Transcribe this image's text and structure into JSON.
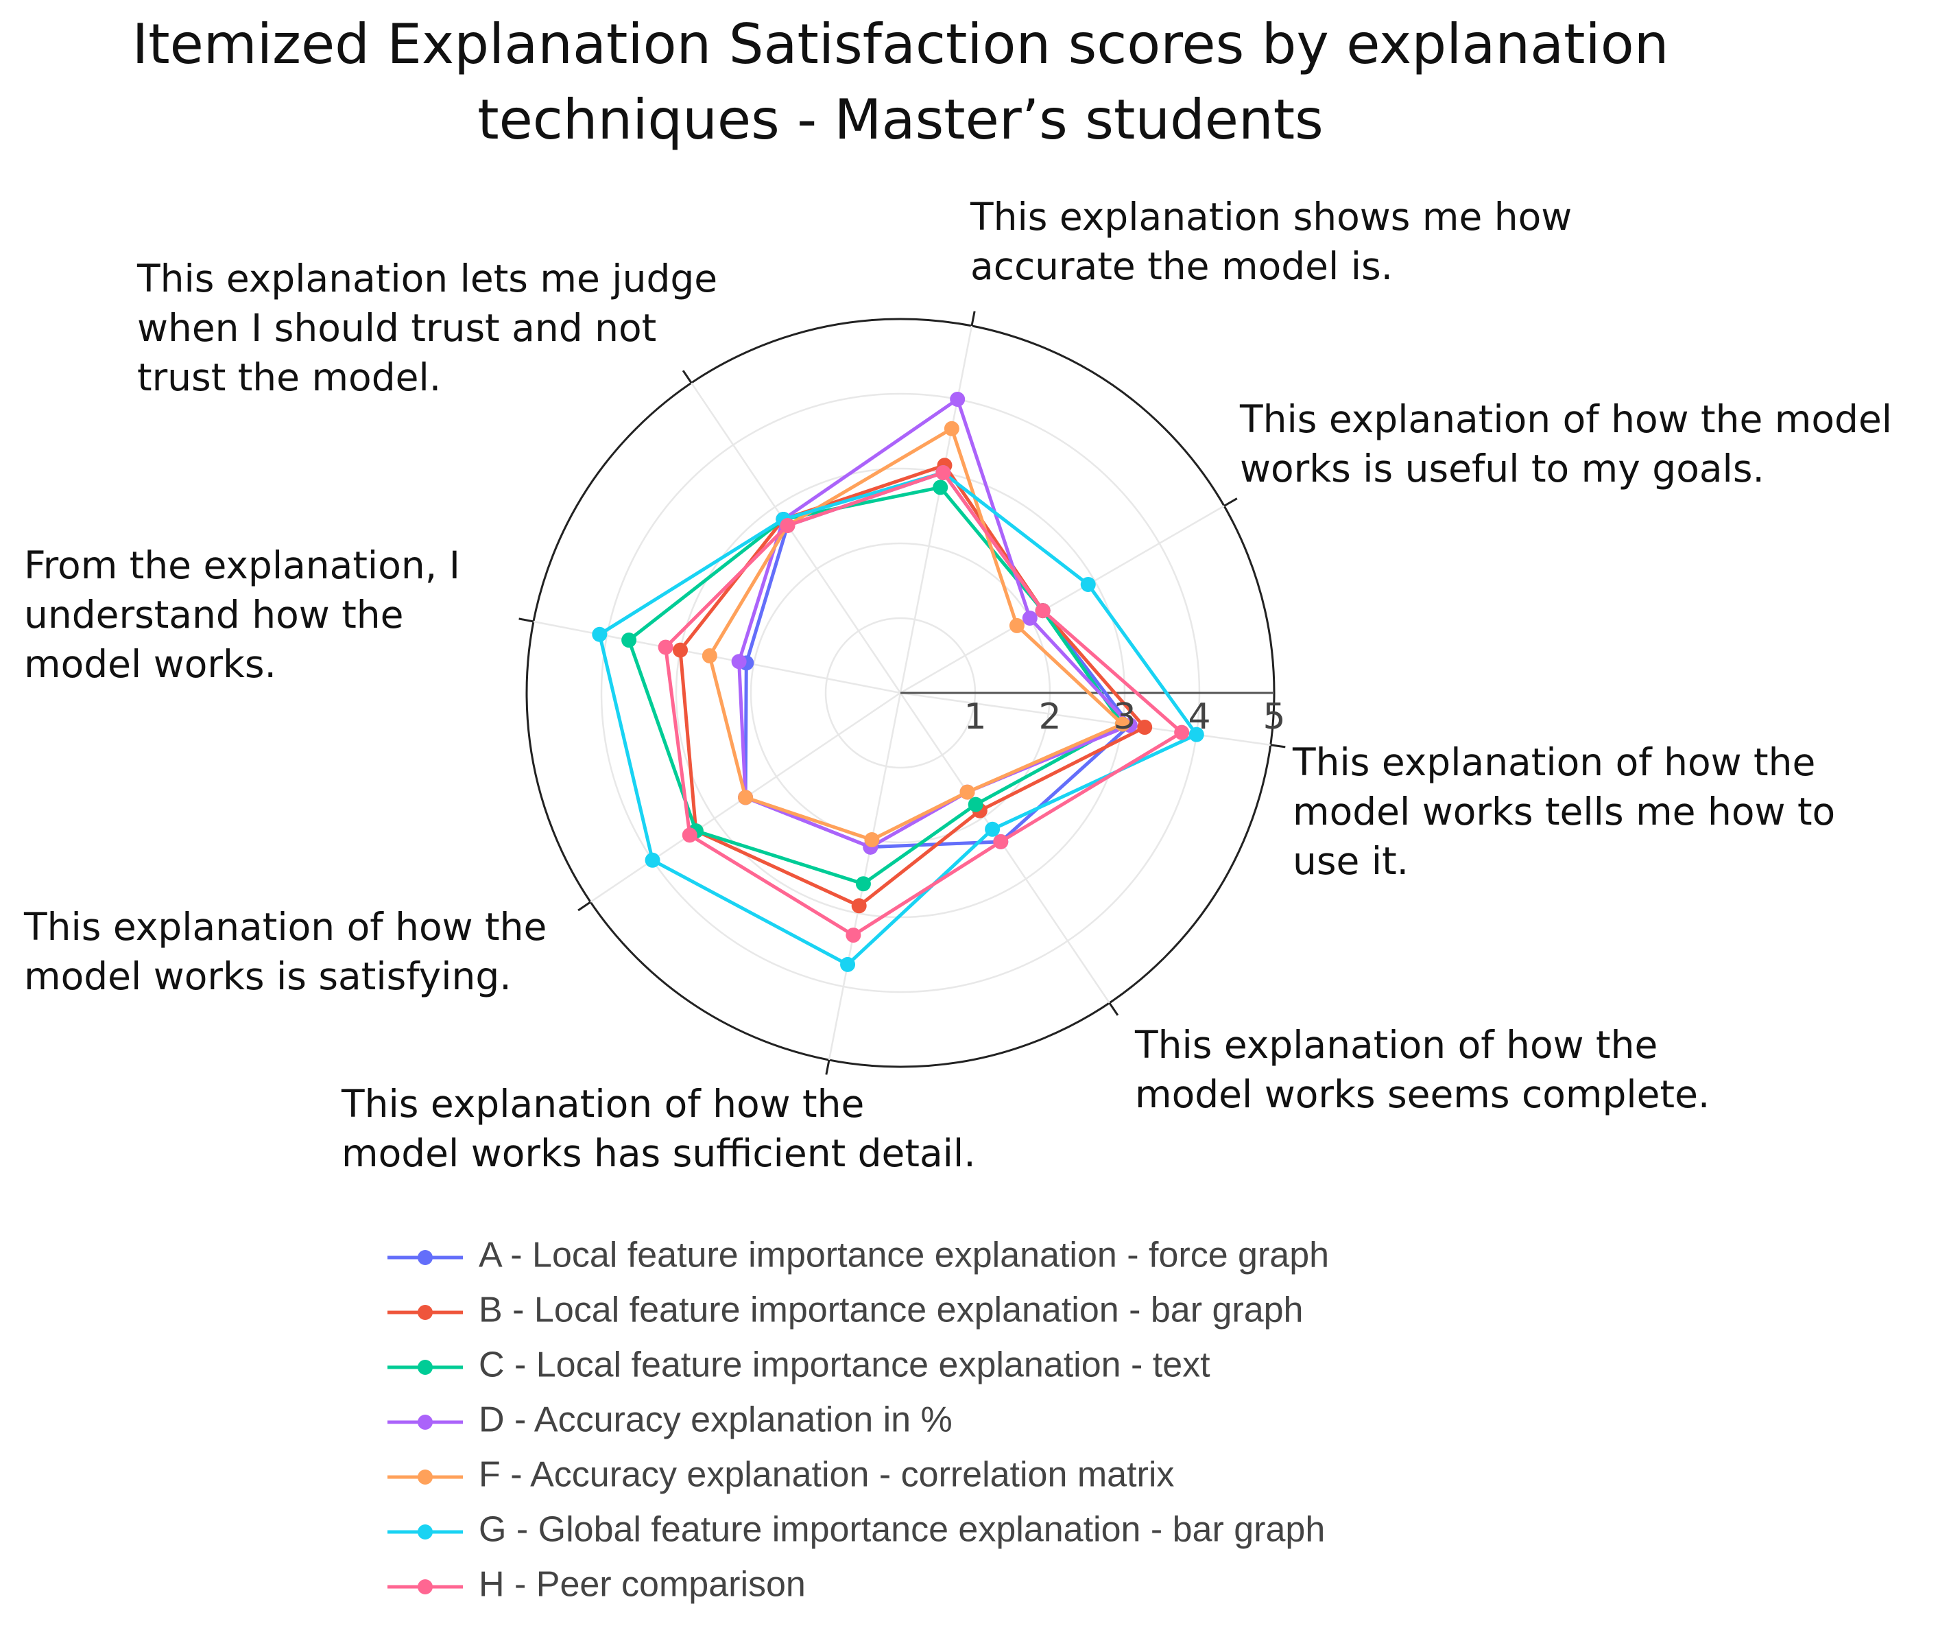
{
  "chart_data": {
    "type": "radar",
    "title": [
      "Itemized Explanation Satisfaction scores by explanation",
      "techniques - Master’s students"
    ],
    "radial_range": [
      0,
      5
    ],
    "radial_ticks": [
      "1",
      "2",
      "3",
      "4",
      "5"
    ],
    "categories": [
      {
        "label": [
          "This explanation of how the",
          "model works tells me how to",
          "use it."
        ],
        "angle_deg": -8
      },
      {
        "label": [
          "This explanation of how the model",
          "works is useful to my goals."
        ],
        "angle_deg": 30
      },
      {
        "label": [
          "This explanation shows me how",
          "accurate the model is."
        ],
        "angle_deg": 79
      },
      {
        "label": [
          "This explanation lets me judge",
          "when I should trust and not",
          "trust the model."
        ],
        "angle_deg": 124
      },
      {
        "label": [
          "From the explanation, I",
          "understand how the",
          "model works."
        ],
        "angle_deg": 169
      },
      {
        "label": [
          "This explanation of how the",
          "model works is satisfying."
        ],
        "angle_deg": 214
      },
      {
        "label": [
          "This explanation of how the",
          "model works has sufficient detail."
        ],
        "angle_deg": 259
      },
      {
        "label": [
          "This explanation of how the",
          "model works seems complete."
        ],
        "angle_deg": 304
      }
    ],
    "series": [
      {
        "name": "A - Local feature importance explanation - force graph",
        "color": "#636efa",
        "values": [
          3.1,
          2.2,
          3.0,
          2.7,
          2.1,
          2.5,
          2.1,
          2.4
        ]
      },
      {
        "name": "B - Local feature importance explanation - bar graph",
        "color": "#ef553b",
        "values": [
          3.3,
          2.2,
          3.1,
          2.8,
          3.0,
          3.3,
          2.9,
          1.9
        ]
      },
      {
        "name": "C - Local feature importance explanation - text",
        "color": "#00cc96",
        "values": [
          3.0,
          2.2,
          2.8,
          2.8,
          3.7,
          3.3,
          2.6,
          1.8
        ]
      },
      {
        "name": "D - Accuracy explanation in %",
        "color": "#ab63fa",
        "values": [
          3.1,
          2.0,
          4.0,
          2.8,
          2.2,
          2.5,
          2.1,
          1.6
        ]
      },
      {
        "name": "F - Accuracy explanation - correlation matrix",
        "color": "#ffa15a",
        "values": [
          3.0,
          1.8,
          3.6,
          2.7,
          2.6,
          2.5,
          2.0,
          1.6
        ]
      },
      {
        "name": "G - Global feature importance explanation - bar graph",
        "color": "#19d3f3",
        "values": [
          4.0,
          2.9,
          3.0,
          2.8,
          4.1,
          4.0,
          3.7,
          2.2
        ]
      },
      {
        "name": "H - Peer comparison",
        "color": "#ff6692",
        "values": [
          3.8,
          2.2,
          3.0,
          2.7,
          3.2,
          3.4,
          3.3,
          2.4
        ]
      }
    ],
    "legend_position": "bottom-center"
  }
}
